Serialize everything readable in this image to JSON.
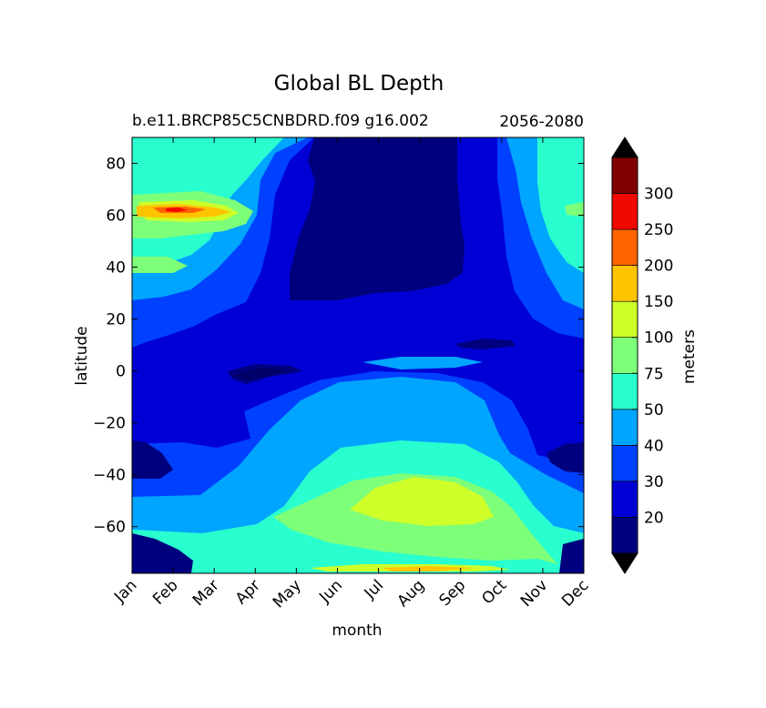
{
  "chart_data": {
    "type": "heatmap",
    "title": "Global BL Depth",
    "subtitle_left": "b.e11.BRCP85C5CNBDRD.f09 g16.002",
    "subtitle_right": "2056-2080",
    "xlabel": "month",
    "ylabel": "latitude",
    "x_ticks": [
      "Jan",
      "Feb",
      "Mar",
      "Apr",
      "May",
      "Jun",
      "Jul",
      "Aug",
      "Sep",
      "Oct",
      "Nov",
      "Dec"
    ],
    "xlim": [
      0,
      11
    ],
    "ylim": [
      -78,
      90
    ],
    "y_ticks": [
      80,
      60,
      40,
      20,
      0,
      -20,
      -40,
      -60
    ],
    "y_tick_labels": [
      "80",
      "60",
      "40",
      "20",
      "0",
      "−20",
      "−40",
      "−60"
    ],
    "colorbar": {
      "label": "meters",
      "levels": [
        20,
        30,
        40,
        50,
        75,
        100,
        150,
        200,
        250,
        300
      ],
      "level_labels": [
        "20",
        "30",
        "40",
        "50",
        "75",
        "100",
        "150",
        "200",
        "250",
        "300"
      ],
      "colors": [
        "#00007f",
        "#0000d4",
        "#0041ff",
        "#00a5ff",
        "#29ffce",
        "#7dff7a",
        "#ceff29",
        "#ffc400",
        "#ff6400",
        "#f10800",
        "#7f0000"
      ],
      "extend": "both"
    }
  }
}
